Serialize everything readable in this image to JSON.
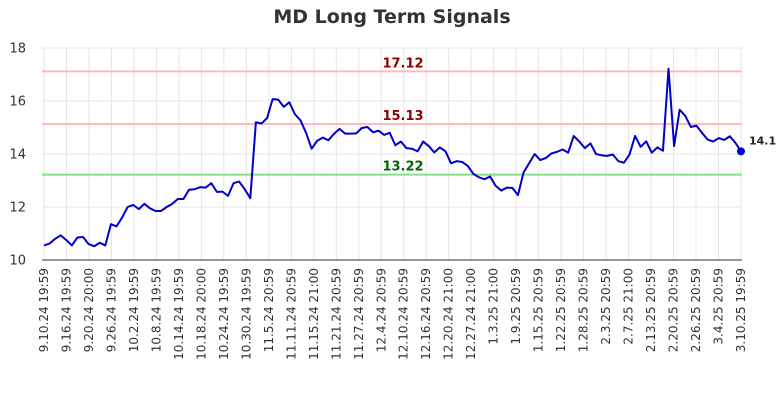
{
  "chart_data": {
    "type": "line",
    "title": "MD Long Term Signals",
    "xlabel": "",
    "ylabel": "",
    "ylim": [
      10,
      18
    ],
    "yticks": [
      10,
      12,
      14,
      16,
      18
    ],
    "grid": true,
    "colors": {
      "line": "#0000cc",
      "upper": "#ffbbbb",
      "mid": "#ffbbbb",
      "lower": "#88dd88",
      "upper_text": "#8b0000",
      "mid_text": "#8b0000",
      "lower_text": "#006400",
      "axis": "#333333",
      "grid": "#e5e5e5"
    },
    "ref_lines": [
      {
        "name": "upper",
        "value": 17.12,
        "label": "17.12"
      },
      {
        "name": "mid",
        "value": 15.13,
        "label": "15.13"
      },
      {
        "name": "lower",
        "value": 13.22,
        "label": "13.22"
      }
    ],
    "last_label": "14.1",
    "xtick_labels": [
      "9.10.24 19:59",
      "9.16.24 19:59",
      "9.20.24 20:00",
      "9.26.24 19:59",
      "10.2.24 19:59",
      "10.8.24 19:59",
      "10.14.24 19:59",
      "10.18.24 20:00",
      "10.24.24 19:59",
      "10.30.24 19:59",
      "11.5.24 20:59",
      "11.11.24 20:59",
      "11.15.24 21:00",
      "11.21.24 20:59",
      "11.27.24 20:59",
      "12.4.24 20:59",
      "12.10.24 20:59",
      "12.16.24 20:59",
      "12.20.24 21:00",
      "12.27.24 21:00",
      "1.3.25 21:00",
      "1.9.25 20:59",
      "1.15.25 20:59",
      "1.22.25 20:59",
      "1.28.25 20:59",
      "2.3.25 20:59",
      "2.7.25 21:00",
      "2.13.25 20:59",
      "2.20.25 20:59",
      "2.26.25 20:59",
      "3.4.25 20:59",
      "3.10.25 19:59"
    ],
    "series": [
      {
        "values": [
          10.55,
          10.62,
          10.8,
          10.93,
          10.75,
          10.55,
          10.85,
          10.87,
          10.6,
          10.52,
          10.65,
          10.55,
          11.35,
          11.27,
          11.6,
          12.0,
          12.08,
          11.92,
          12.12,
          11.95,
          11.85,
          11.85,
          12.0,
          12.12,
          12.3,
          12.3,
          12.65,
          12.67,
          12.75,
          12.73,
          12.9,
          12.57,
          12.58,
          12.42,
          12.9,
          12.96,
          12.67,
          12.33,
          15.2,
          15.15,
          15.35,
          16.07,
          16.05,
          15.78,
          15.95,
          15.5,
          15.27,
          14.8,
          14.2,
          14.5,
          14.62,
          14.52,
          14.76,
          14.95,
          14.77,
          14.77,
          14.78,
          14.98,
          15.02,
          14.82,
          14.88,
          14.72,
          14.8,
          14.33,
          14.47,
          14.22,
          14.2,
          14.1,
          14.47,
          14.3,
          14.06,
          14.25,
          14.1,
          13.65,
          13.73,
          13.7,
          13.55,
          13.25,
          13.12,
          13.05,
          13.15,
          12.8,
          12.62,
          12.73,
          12.72,
          12.45,
          13.3,
          13.65,
          14.0,
          13.77,
          13.85,
          14.02,
          14.08,
          14.17,
          14.05,
          14.68,
          14.47,
          14.22,
          14.4,
          14.0,
          13.95,
          13.93,
          13.98,
          13.73,
          13.67,
          13.98,
          14.68,
          14.27,
          14.48,
          14.05,
          14.25,
          14.12,
          17.22,
          14.3,
          15.67,
          15.44,
          15.02,
          15.07,
          14.8,
          14.55,
          14.47,
          14.6,
          14.53,
          14.67,
          14.42,
          14.1
        ]
      }
    ]
  }
}
